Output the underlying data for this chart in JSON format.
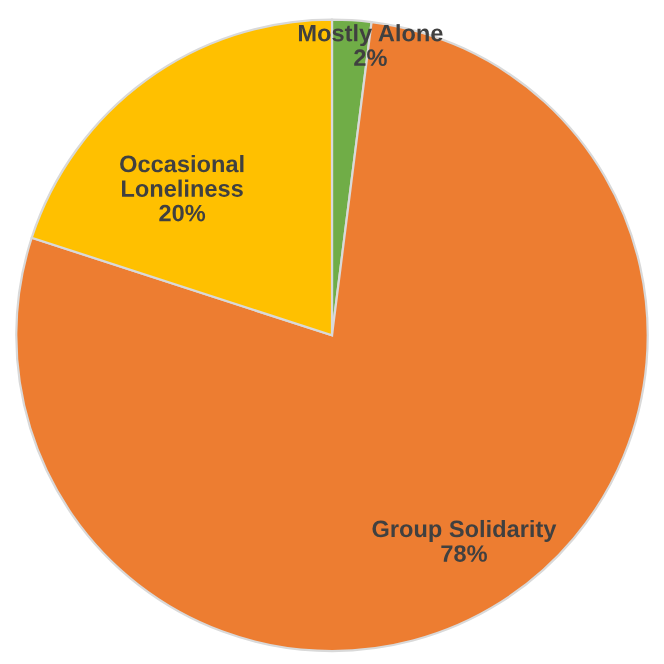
{
  "chart_data": {
    "type": "pie",
    "categories": [
      "Mostly Alone",
      "Group Solidarity",
      "Occasional Loneliness"
    ],
    "values": [
      2,
      78,
      20
    ],
    "colors": [
      "#70ad47",
      "#ed7d31",
      "#ffc000"
    ],
    "value_labels": [
      "2%",
      "78%",
      "20%"
    ],
    "legend": false
  }
}
